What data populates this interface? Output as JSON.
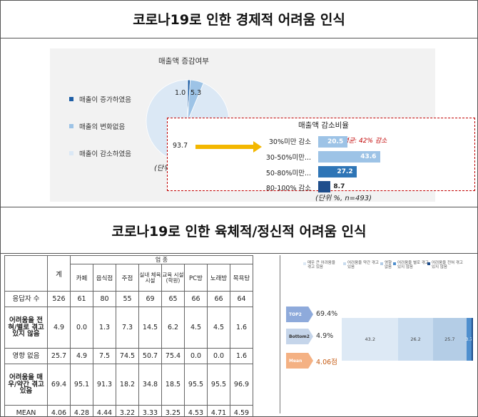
{
  "section1": {
    "title": "코로나19로 인한 경제적 어려움 인식"
  },
  "section2": {
    "title": "코로나19로 인한 육체적/정신적 어려움 인식"
  },
  "pie": {
    "title": "매출액 증감여부",
    "legend": [
      {
        "label": "매출이 증가하였음",
        "color": "#1f5fa6"
      },
      {
        "label": "매출의 변화없음",
        "color": "#9dc3e6"
      },
      {
        "label": "매출이 감소하였음",
        "color": "#dbe8f5"
      }
    ],
    "values": [
      1.0,
      5.3,
      93.7
    ],
    "value_labels": [
      "1.0",
      "5.3",
      "93.7"
    ],
    "unit": "(단위 %, n=526)"
  },
  "decrease": {
    "title": "매출액 감소비율",
    "note": "*평균: 42% 감소",
    "unit": "(단위 %, n=493)",
    "categories": [
      "30%미만 감소",
      "30-50%미만...",
      "50-80%미만...",
      "80-100% 감소"
    ],
    "values": [
      20.5,
      43.6,
      27.2,
      8.7
    ],
    "value_labels": [
      "20.5",
      "43.6",
      "27.2",
      "8.7"
    ],
    "colors": [
      "#9dc3e6",
      "#9dc3e6",
      "#2e75b6",
      "#1f4e8c"
    ]
  },
  "table": {
    "col_total": "계",
    "group_header": "업 종",
    "columns": [
      "카페",
      "음식점",
      "주점",
      "실내 체육 시설",
      "교육 시설 (학원)",
      "PC방",
      "노래방",
      "목욕탕"
    ],
    "rows": [
      {
        "label": "응답자 수",
        "total": "526",
        "cells": [
          "61",
          "80",
          "55",
          "69",
          "65",
          "66",
          "66",
          "64"
        ]
      },
      {
        "label": "어려움을 전혀/별로 겪고 있지 않음",
        "total": "4.9",
        "cells": [
          "0.0",
          "1.3",
          "7.3",
          "14.5",
          "6.2",
          "4.5",
          "4.5",
          "1.6"
        ]
      },
      {
        "label": "영향 없음",
        "total": "25.7",
        "cells": [
          "4.9",
          "7.5",
          "74.5",
          "50.7",
          "75.4",
          "0.0",
          "0.0",
          "1.6"
        ]
      },
      {
        "label": "어려움을 매우/약간 겪고 있음",
        "total": "69.4",
        "cells": [
          "95.1",
          "91.3",
          "18.2",
          "34.8",
          "18.5",
          "95.5",
          "95.5",
          "96.9"
        ]
      },
      {
        "label": "MEAN",
        "total": "4.06",
        "cells": [
          "4.28",
          "4.44",
          "3.22",
          "3.33",
          "3.25",
          "4.53",
          "4.71",
          "4.59"
        ]
      }
    ]
  },
  "stacked": {
    "legend": [
      {
        "label": "매우 큰 어려움을 겪고 있음",
        "color": "#dde9f5"
      },
      {
        "label": "어려움을 약간 겪고 있음",
        "color": "#c9dcef"
      },
      {
        "label": "영향 없음",
        "color": "#b4cde6"
      },
      {
        "label": "어려움을 별로 겪고 있지 않음",
        "color": "#4f8fce"
      },
      {
        "label": "어려움을 전혀 겪고 있지 않음",
        "color": "#1f4e8c"
      }
    ],
    "badges": [
      {
        "label": "TOP2",
        "value": "69.4%",
        "color": "#8eaadb"
      },
      {
        "label": "Bottom2",
        "value": "4.9%",
        "color": "#c5d5ea"
      },
      {
        "label": "Mean",
        "value": "4.06점",
        "color": "#f4b183"
      }
    ],
    "segments": [
      43.2,
      26.2,
      25.7,
      3.7,
      1.2
    ],
    "segment_labels": [
      "43.2",
      "26.2",
      "25.7",
      "3.7",
      ""
    ]
  }
}
